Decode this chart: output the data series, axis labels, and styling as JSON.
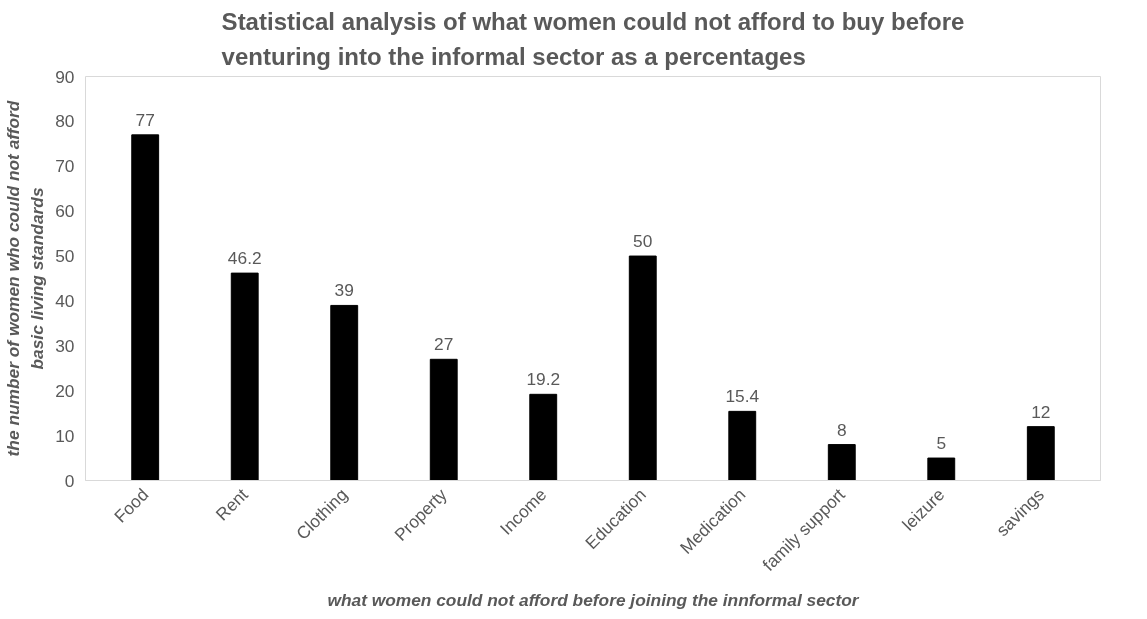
{
  "chart_data": {
    "type": "bar",
    "title": "Statistical analysis of what women could not afford to buy before venturing into the informal sector as a percentages",
    "xlabel": "what women could not afford before joining the innformal sector",
    "ylabel": "the number of women who could not afford basic living standards",
    "categories": [
      "Food",
      "Rent",
      "Clothing",
      "Property",
      "Income",
      "Education",
      "Medication",
      "family support",
      "leizure",
      "savings"
    ],
    "values": [
      77,
      46.2,
      39,
      27,
      19.2,
      50,
      15.4,
      8,
      5,
      12
    ],
    "color": "#000000",
    "ylim": [
      0,
      90
    ],
    "yticks": [
      0,
      10,
      20,
      30,
      40,
      50,
      60,
      70,
      80,
      90
    ],
    "grid": false,
    "data_labels": true
  }
}
